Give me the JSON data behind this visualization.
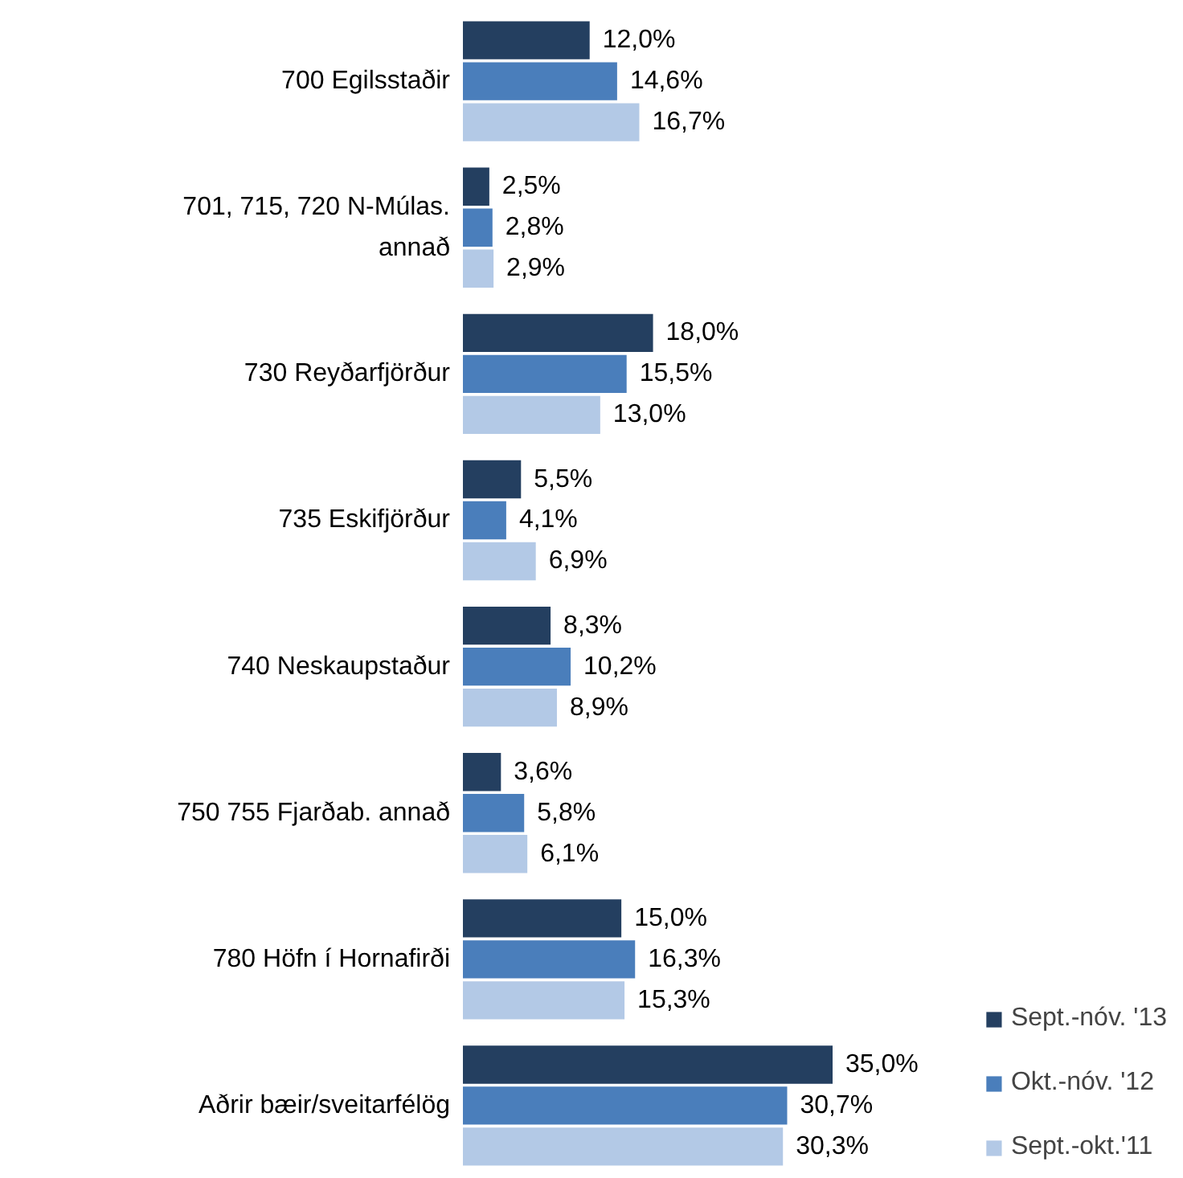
{
  "chart_data": {
    "type": "bar",
    "orientation": "horizontal",
    "categories": [
      "700 Egilsstaðir",
      "701, 715, 720 N-Múlas. annað",
      "730 Reyðarfjörður",
      "735 Eskifjörður",
      "740 Neskaupstaður",
      "750 755 Fjarðab. annað",
      "780 Höfn í Hornafirði",
      "Aðrir bæir/sveitarfélög"
    ],
    "series": [
      {
        "name": "Sept.-nóv. '13",
        "color": "#243f60",
        "values": [
          12.0,
          2.5,
          18.0,
          5.5,
          8.3,
          3.6,
          15.0,
          35.0
        ],
        "value_labels": [
          "12,0%",
          "2,5%",
          "18,0%",
          "5,5%",
          "8,3%",
          "3,6%",
          "15,0%",
          "35,0%"
        ]
      },
      {
        "name": "Okt.-nóv. '12",
        "color": "#4a7ebb",
        "values": [
          14.6,
          2.8,
          15.5,
          4.1,
          10.2,
          5.8,
          16.3,
          30.7
        ],
        "value_labels": [
          "14,6%",
          "2,8%",
          "15,5%",
          "4,1%",
          "10,2%",
          "5,8%",
          "16,3%",
          "30,7%"
        ]
      },
      {
        "name": "Sept.-okt.'11",
        "color": "#b3c9e6",
        "values": [
          16.7,
          2.9,
          13.0,
          6.9,
          8.9,
          6.1,
          15.3,
          30.3
        ],
        "value_labels": [
          "16,7%",
          "2,9%",
          "13,0%",
          "6,9%",
          "8,9%",
          "6,1%",
          "15,3%",
          "30,3%"
        ]
      }
    ],
    "grid": false,
    "legend": "bottom right"
  }
}
